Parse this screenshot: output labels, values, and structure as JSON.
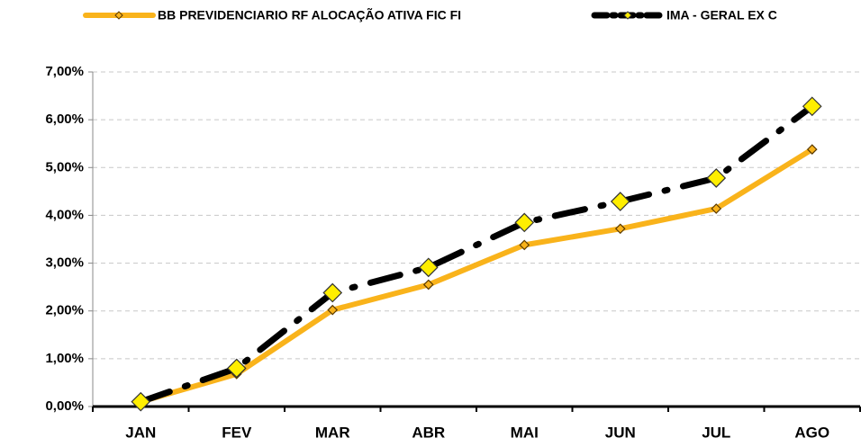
{
  "chart_data": {
    "type": "line",
    "categories": [
      "JAN",
      "FEV",
      "MAR",
      "ABR",
      "MAI",
      "JUN",
      "JUL",
      "AGO"
    ],
    "series": [
      {
        "name": "BB PREVIDENCIARIO RF ALOCAÇÃO ATIVA FIC FI",
        "color": "#f9b31b",
        "values": [
          0.1,
          0.68,
          2.02,
          2.55,
          3.38,
          3.72,
          4.14,
          5.38
        ]
      },
      {
        "name": "IMA - GERAL EX C",
        "color": "#000000",
        "values": [
          0.1,
          0.8,
          2.38,
          2.91,
          3.85,
          4.29,
          4.78,
          6.28
        ]
      }
    ],
    "ylim": [
      0,
      7
    ],
    "yticks": [
      {
        "value": 0,
        "label": "0,00%"
      },
      {
        "value": 1,
        "label": "1,00%"
      },
      {
        "value": 2,
        "label": "2,00%"
      },
      {
        "value": 3,
        "label": "3,00%"
      },
      {
        "value": 4,
        "label": "4,00%"
      },
      {
        "value": 5,
        "label": "5,00%"
      },
      {
        "value": 6,
        "label": "6,00%"
      },
      {
        "value": 7,
        "label": "7,00%"
      }
    ],
    "grid": true,
    "legend": "top"
  }
}
